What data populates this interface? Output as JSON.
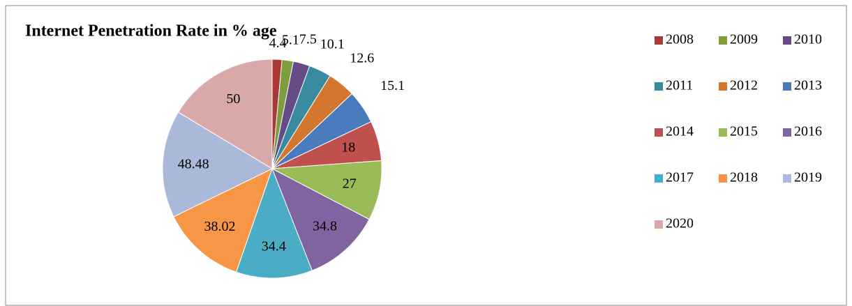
{
  "chart_data": {
    "type": "pie",
    "title": "Internet Penetration Rate in % age",
    "categories": [
      "2008",
      "2009",
      "2010",
      "2011",
      "2012",
      "2013",
      "2014",
      "2015",
      "2016",
      "2017",
      "2018",
      "2019",
      "2020"
    ],
    "values": [
      4.4,
      5.1,
      7.5,
      10.1,
      12.6,
      15.1,
      18,
      27,
      34.8,
      34.4,
      38.02,
      48.48,
      50
    ],
    "colors": [
      "#a83a38",
      "#7f9c3e",
      "#654c87",
      "#3a8aa0",
      "#d4772e",
      "#4a7bbd",
      "#c0504d",
      "#9bbb59",
      "#8064a2",
      "#4bacc6",
      "#f79646",
      "#aab9d9",
      "#d9a8a8"
    ],
    "legend": "right"
  }
}
